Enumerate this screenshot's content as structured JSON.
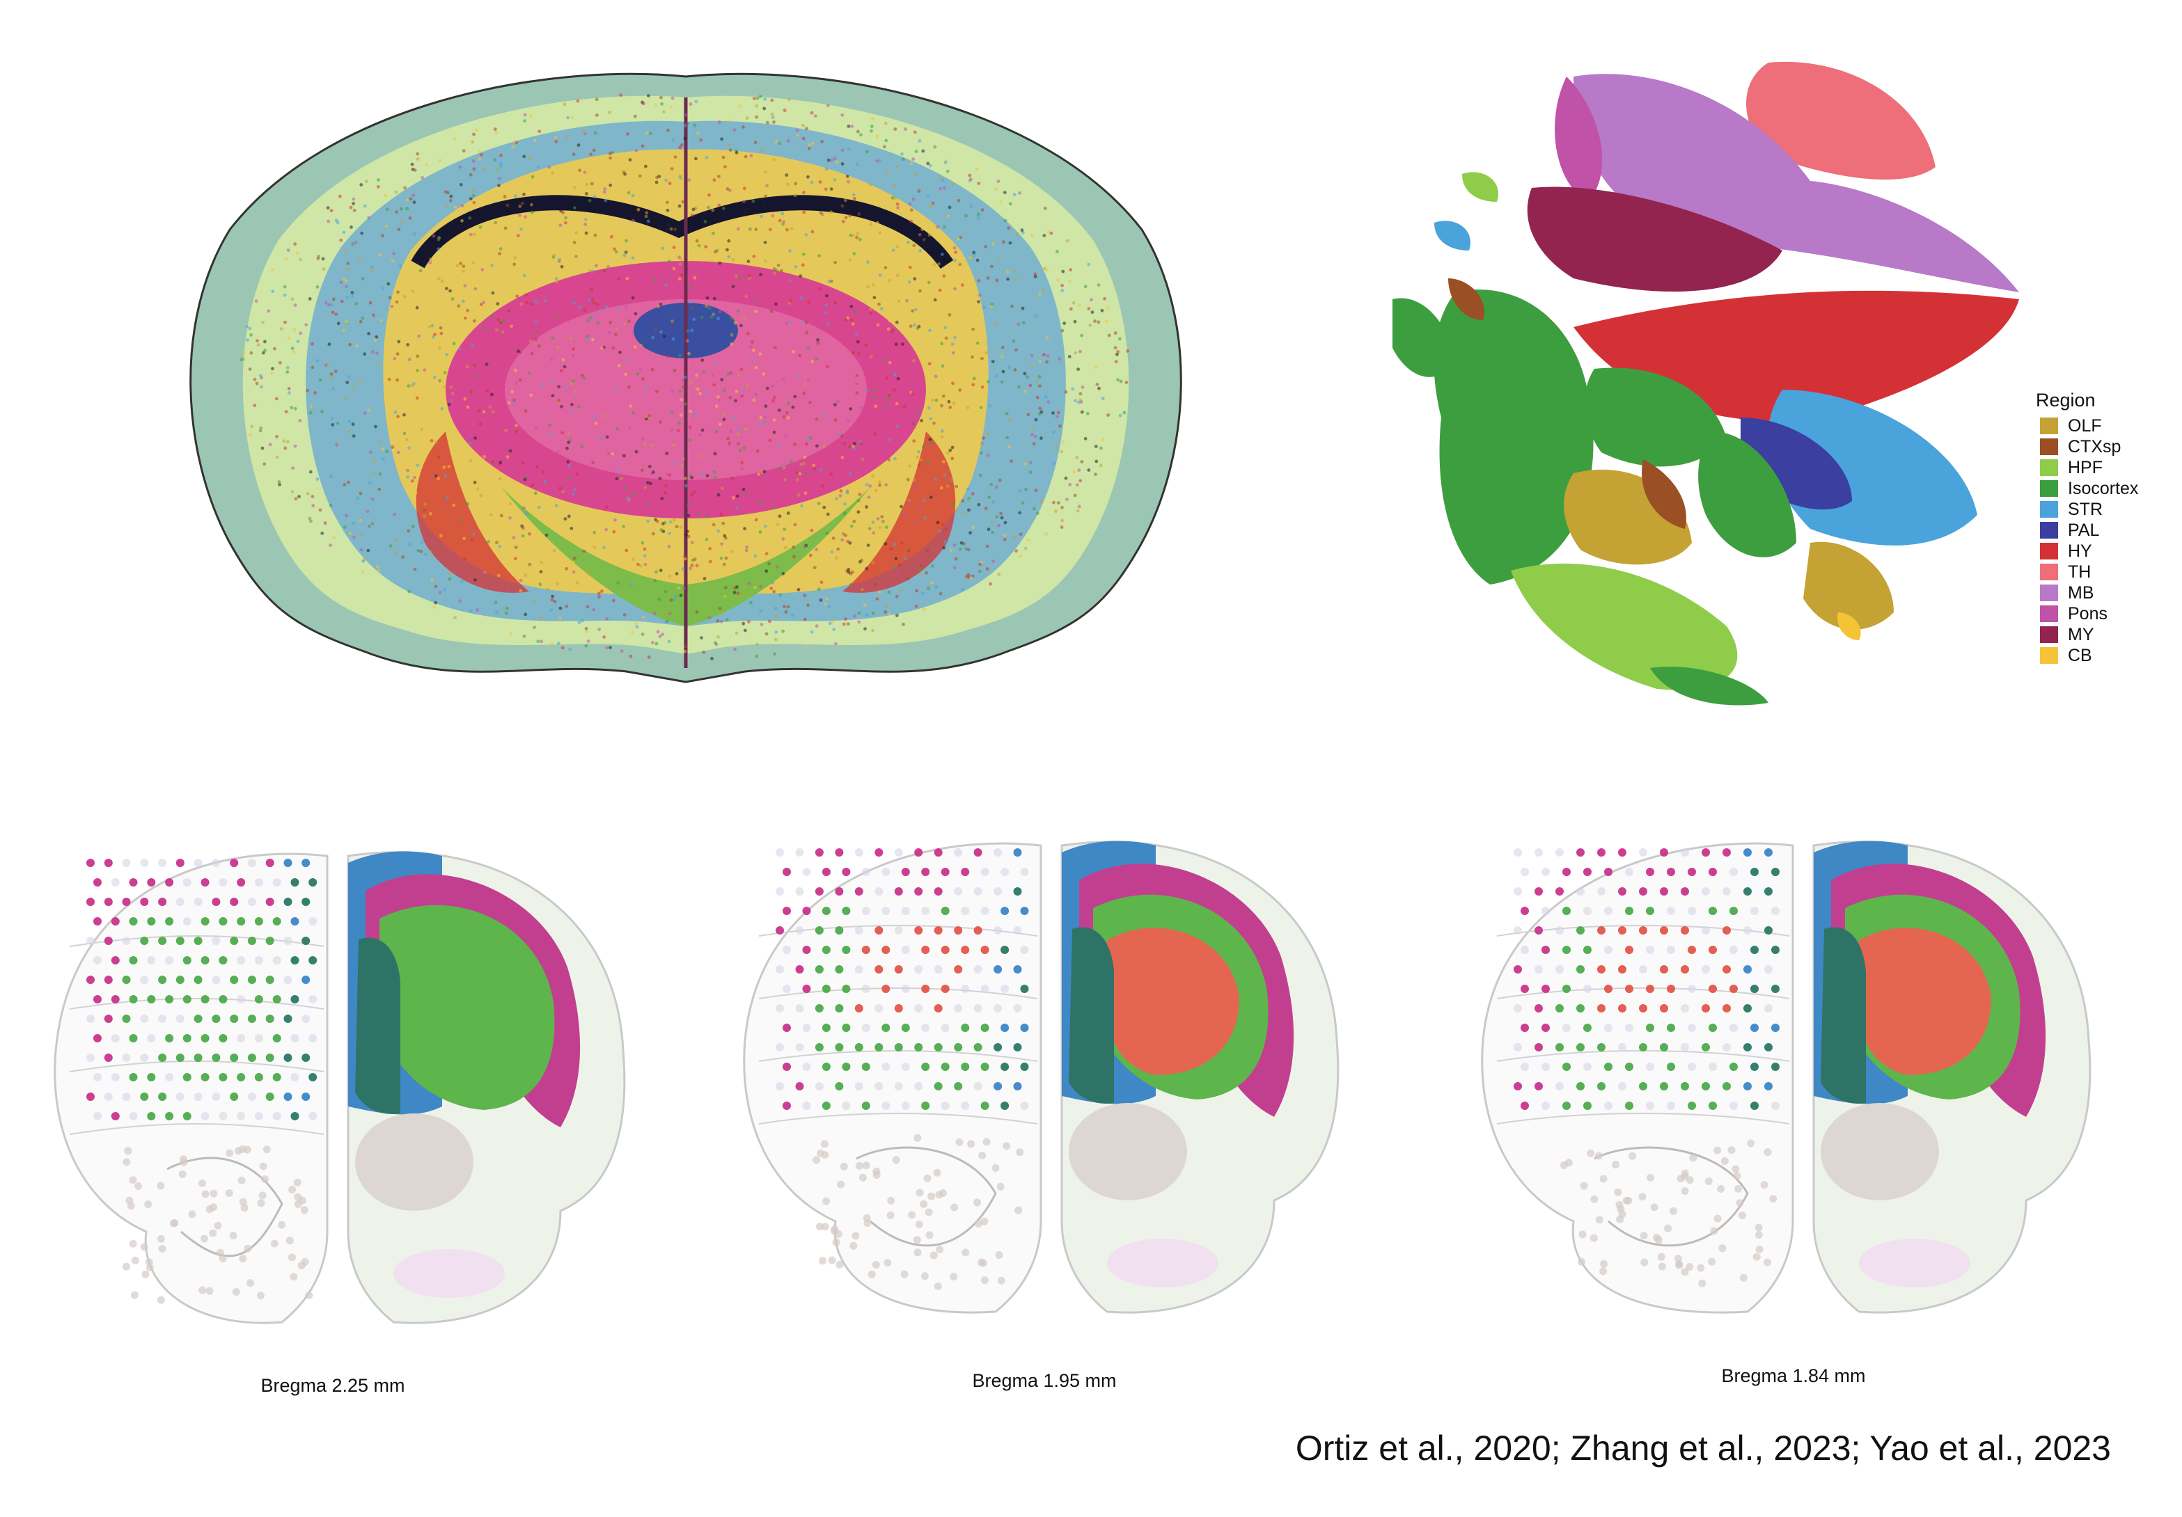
{
  "legend": {
    "title": "Region",
    "items": [
      {
        "label": "OLF",
        "color": "#c4a233"
      },
      {
        "label": "CTXsp",
        "color": "#9b4f24"
      },
      {
        "label": "HPF",
        "color": "#8fcc4a"
      },
      {
        "label": "Isocortex",
        "color": "#3d9e3f"
      },
      {
        "label": "STR",
        "color": "#4ba3dc"
      },
      {
        "label": "PAL",
        "color": "#3a3fa0"
      },
      {
        "label": "HY",
        "color": "#d43136"
      },
      {
        "label": "TH",
        "color": "#ee6f79"
      },
      {
        "label": "MB",
        "color": "#b779c8"
      },
      {
        "label": "Pons",
        "color": "#c052a8"
      },
      {
        "label": "MY",
        "color": "#93244f"
      },
      {
        "label": "CB",
        "color": "#f5c336"
      }
    ]
  },
  "sections": [
    {
      "label": "Bregma 2.25 mm"
    },
    {
      "label": "Bregma  1.95 mm"
    },
    {
      "label": "Bregma  1.84 mm"
    }
  ],
  "citation": "Ortiz et al., 2020; Zhang et al., 2023; Yao et al., 2023",
  "colors": {
    "spot_blue": "#3b86c8",
    "spot_magenta": "#c8348c",
    "spot_green": "#4daa4c",
    "spot_red": "#e2554a",
    "spot_teal": "#2b7866",
    "atlas_blue": "#3f88c5",
    "atlas_magenta": "#c23f8f",
    "atlas_green": "#5db54c",
    "atlas_red": "#e46651",
    "atlas_teal": "#2e7466",
    "atlas_grey": "#ddd6d2"
  }
}
